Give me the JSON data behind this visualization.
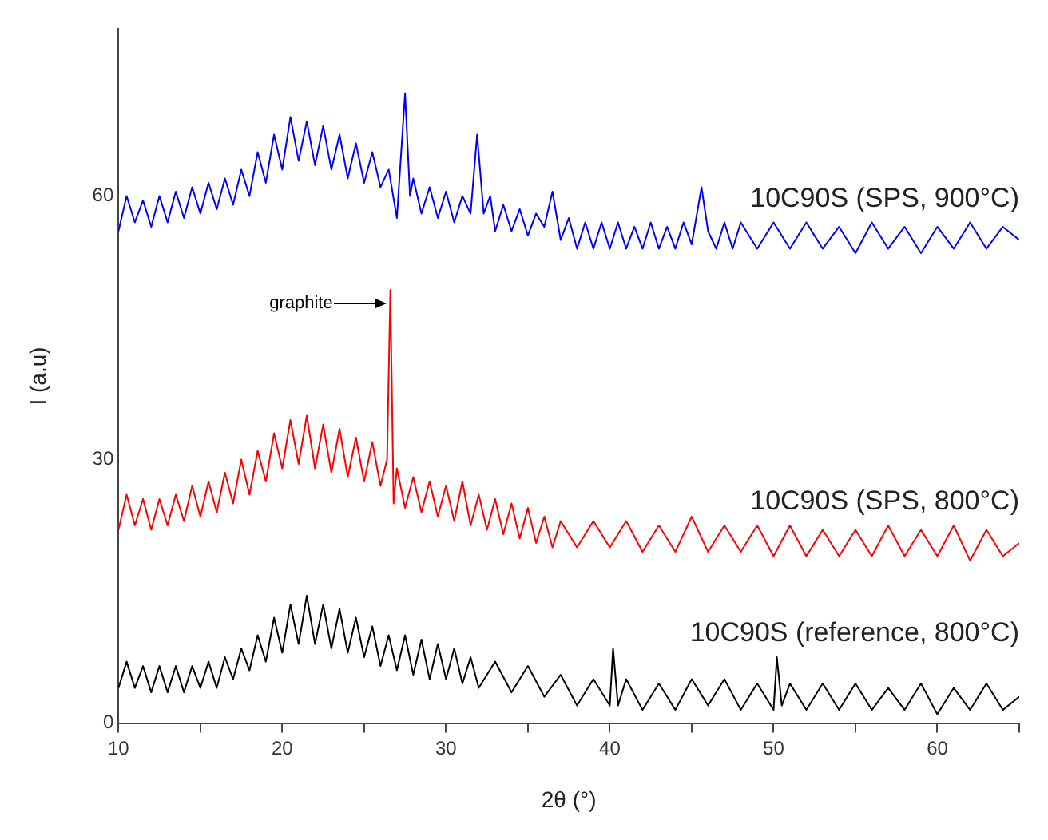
{
  "chart_data": {
    "type": "line",
    "xlabel": "2θ (°)",
    "ylabel": "I (a.u)",
    "xlim": [
      10,
      65
    ],
    "xticks": [
      10,
      {
        "value": 15,
        "label": null
      },
      20,
      {
        "value": 25,
        "label": null
      },
      30,
      {
        "value": 35,
        "label": null
      },
      40,
      {
        "value": 45,
        "label": null
      },
      50,
      {
        "value": 55,
        "label": null
      },
      60,
      {
        "value": 65,
        "label": null
      }
    ],
    "ylim": [
      0,
      79
    ],
    "yticks": [
      0,
      30,
      60
    ],
    "grid": false,
    "legend": false,
    "marker": "none",
    "line_style": "solid",
    "annotations": [
      "graphite"
    ],
    "series": [
      {
        "name": "10C90S (SPS, 900°C)",
        "color": "#0000ff",
        "x": [
          10,
          10.5,
          11,
          11.5,
          12,
          12.5,
          13,
          13.5,
          14,
          14.5,
          15,
          15.5,
          16,
          16.5,
          17,
          17.5,
          18,
          18.5,
          19,
          19.5,
          20,
          20.5,
          21,
          21.5,
          22,
          22.5,
          23,
          23.5,
          24,
          24.5,
          25,
          25.5,
          26,
          26.5,
          27,
          27.5,
          27.8,
          28,
          28.5,
          29,
          29.5,
          30,
          30.5,
          31,
          31.5,
          31.9,
          32.3,
          32.7,
          33,
          33.5,
          34,
          34.5,
          35,
          35.5,
          36,
          36.5,
          37,
          37.5,
          38,
          38.5,
          39,
          39.5,
          40,
          40.5,
          41,
          41.5,
          42,
          42.5,
          43,
          43.5,
          44,
          44.5,
          45,
          45.6,
          46,
          46.5,
          47,
          47.5,
          48,
          49,
          50,
          51,
          52,
          53,
          54,
          55,
          56,
          57,
          58,
          59,
          60,
          61,
          62,
          63,
          64,
          65
        ],
        "values": [
          56,
          60,
          57,
          59.5,
          56.5,
          60,
          57,
          60.5,
          57.5,
          61,
          58,
          61.5,
          58.5,
          62,
          59,
          63,
          60,
          65,
          61.5,
          67,
          63,
          69,
          64,
          68.5,
          63.5,
          68,
          63,
          67,
          62,
          66,
          61.5,
          65,
          61,
          63,
          57.5,
          71.7,
          60,
          62,
          58,
          61,
          57.5,
          60.5,
          57,
          60,
          58,
          67,
          58,
          60,
          56,
          59,
          56,
          58.5,
          55.5,
          58,
          56.5,
          60.5,
          55,
          57.5,
          54,
          57,
          54,
          57,
          54,
          57,
          54,
          56.5,
          54,
          57,
          54,
          56.5,
          54,
          57,
          54.5,
          61,
          56,
          54,
          57,
          54,
          57,
          54,
          57,
          54,
          57,
          54,
          56.5,
          53.5,
          57,
          54,
          56.5,
          53.5,
          56.5,
          54,
          57,
          54,
          56.5,
          55
        ]
      },
      {
        "name": "10C90S (SPS, 800°C)",
        "color": "#ff0000",
        "x": [
          10,
          10.5,
          11,
          11.5,
          12,
          12.5,
          13,
          13.5,
          14,
          14.5,
          15,
          15.5,
          16,
          16.5,
          17,
          17.5,
          18,
          18.5,
          19,
          19.5,
          20,
          20.5,
          21,
          21.5,
          22,
          22.5,
          23,
          23.5,
          24,
          24.5,
          25,
          25.5,
          26,
          26.4,
          26.6,
          26.8,
          27,
          27.5,
          28,
          28.5,
          29,
          29.5,
          30,
          30.5,
          31,
          31.5,
          32,
          32.5,
          33,
          33.5,
          34,
          34.5,
          35,
          35.5,
          36,
          36.5,
          37,
          38,
          39,
          40,
          41,
          42,
          43,
          44,
          45,
          46,
          47,
          48,
          49,
          50,
          51,
          52,
          53,
          54,
          55,
          56,
          57,
          58,
          59,
          60,
          61,
          62,
          63,
          64,
          65
        ],
        "values": [
          22,
          26,
          22.5,
          25.5,
          22,
          25.5,
          22.5,
          26,
          23,
          27,
          23.5,
          27.5,
          24,
          28.5,
          25,
          30,
          26,
          31,
          27.5,
          33,
          29,
          34.5,
          29.5,
          35,
          29,
          34,
          28.5,
          33.5,
          28,
          32.5,
          27.5,
          32,
          27,
          30,
          49.3,
          25,
          29,
          24.5,
          28,
          24,
          27.5,
          23.5,
          27,
          23,
          27.5,
          22.5,
          26,
          22,
          25.5,
          21.5,
          25,
          21,
          24.5,
          20.5,
          23.5,
          20,
          23,
          20,
          23,
          20,
          23,
          19.5,
          22.5,
          19.5,
          23.5,
          19.5,
          22.5,
          19.5,
          22.5,
          19,
          22.5,
          19,
          22,
          19,
          22,
          19,
          22.5,
          19,
          22,
          19,
          22.5,
          18.5,
          22,
          19,
          20.5
        ]
      },
      {
        "name": "10C90S (reference, 800°C)",
        "color": "#000000",
        "x": [
          10,
          10.5,
          11,
          11.5,
          12,
          12.5,
          13,
          13.5,
          14,
          14.5,
          15,
          15.5,
          16,
          16.5,
          17,
          17.5,
          18,
          18.5,
          19,
          19.5,
          20,
          20.5,
          21,
          21.5,
          22,
          22.5,
          23,
          23.5,
          24,
          24.5,
          25,
          25.5,
          26,
          26.5,
          27,
          27.5,
          28,
          28.5,
          29,
          29.5,
          30,
          30.5,
          31,
          31.5,
          32,
          33,
          34,
          35,
          36,
          37,
          38,
          39,
          40,
          40.2,
          40.5,
          41,
          42,
          43,
          44,
          45,
          46,
          47,
          48,
          49,
          50,
          50.2,
          50.5,
          51,
          52,
          53,
          54,
          55,
          56,
          57,
          58,
          59,
          60,
          61,
          62,
          63,
          64,
          65
        ],
        "values": [
          4,
          7,
          4,
          6.5,
          3.5,
          6.5,
          3.5,
          6.5,
          3.5,
          6.5,
          4,
          7,
          4,
          7.5,
          5,
          8.5,
          6,
          10,
          7,
          12,
          8,
          13.5,
          9,
          14.5,
          9,
          13.5,
          8.5,
          13,
          8,
          12,
          7.5,
          11,
          6.5,
          10,
          6,
          10,
          5.5,
          9.5,
          5,
          9,
          5,
          8.5,
          4.5,
          7.5,
          4,
          7,
          3.5,
          6.5,
          3,
          5.5,
          2,
          5,
          2,
          8.5,
          2,
          5,
          1.5,
          4.5,
          1.5,
          5,
          2,
          5,
          1.5,
          4.5,
          1.5,
          7.5,
          2,
          4.5,
          1.5,
          4.5,
          1.5,
          4.5,
          1.5,
          4,
          1.5,
          4.5,
          1,
          4,
          1.5,
          4.5,
          1.5,
          3
        ]
      }
    ]
  }
}
